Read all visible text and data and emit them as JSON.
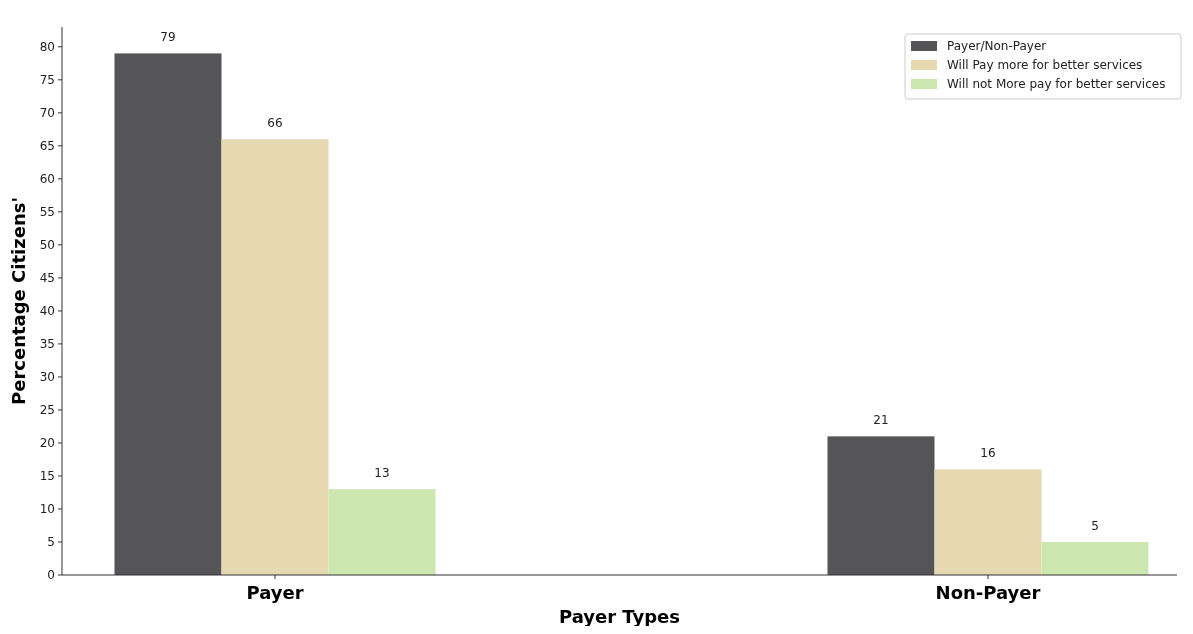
{
  "chart_data": {
    "type": "bar",
    "xlabel": "Payer Types",
    "ylabel": "Percentage Citizens'",
    "categories": [
      "Payer",
      "Non-Payer"
    ],
    "series": [
      {
        "name": "Payer/Non-Payer",
        "color": "#555557",
        "values": [
          79,
          21
        ]
      },
      {
        "name": "Will Pay more for better services",
        "color": "#e6d8b0",
        "values": [
          66,
          16
        ]
      },
      {
        "name": "Will not More pay for better services",
        "color": "#cce8b0",
        "values": [
          13,
          5
        ]
      }
    ],
    "ylim": [
      0,
      83
    ],
    "yticks": [
      0,
      5,
      10,
      15,
      20,
      25,
      30,
      35,
      40,
      45,
      50,
      55,
      60,
      65,
      70,
      75,
      80
    ],
    "data_labels": true,
    "legend": "top right",
    "grid": false
  }
}
